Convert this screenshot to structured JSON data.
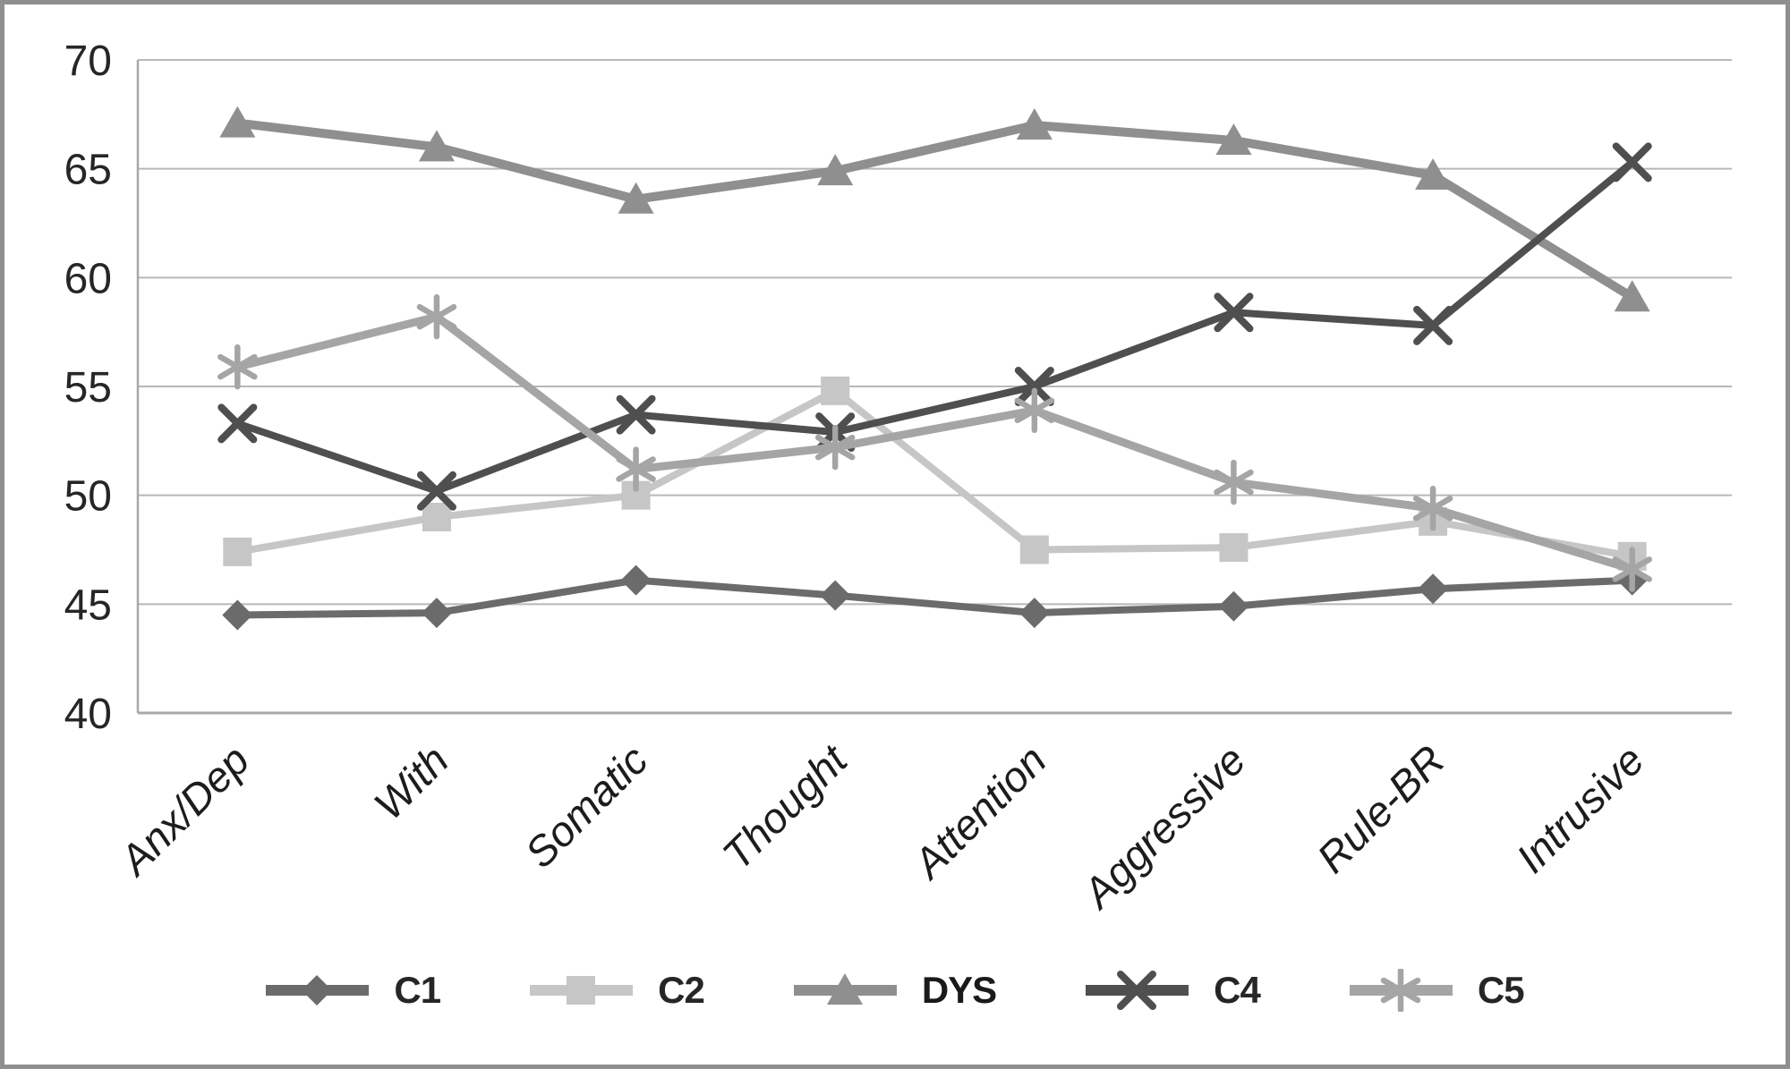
{
  "figure": {
    "background": "#ffffff",
    "border_color": "#8f8f8f"
  },
  "chart_data": {
    "type": "line",
    "title": "",
    "xlabel": "",
    "ylabel": "",
    "categories": [
      "Anx/Dep",
      "With",
      "Somatic",
      "Thought",
      "Attention",
      "Aggressive",
      "Rule-BR",
      "Intrusive"
    ],
    "series": [
      {
        "name": "C1",
        "marker": "diamond",
        "color": "#6b6b6b",
        "line_width": 8,
        "bold_label": false,
        "values": [
          44.5,
          44.6,
          46.1,
          45.4,
          44.6,
          44.9,
          45.7,
          46.1
        ]
      },
      {
        "name": "C2",
        "marker": "square",
        "color": "#c6c6c6",
        "line_width": 8,
        "bold_label": false,
        "values": [
          47.4,
          49.0,
          50.0,
          54.8,
          47.5,
          47.6,
          48.8,
          47.2
        ]
      },
      {
        "name": "DYS",
        "marker": "triangle",
        "color": "#8f8f8f",
        "line_width": 10,
        "bold_label": true,
        "values": [
          67.1,
          66.0,
          63.6,
          64.9,
          67.0,
          66.3,
          64.7,
          59.1
        ]
      },
      {
        "name": "C4",
        "marker": "x",
        "color": "#4f4f4f",
        "line_width": 8,
        "bold_label": false,
        "values": [
          53.3,
          50.2,
          53.7,
          52.9,
          55.0,
          58.4,
          57.8,
          65.3
        ]
      },
      {
        "name": "C5",
        "marker": "asterisk",
        "color": "#a5a5a5",
        "line_width": 9,
        "bold_label": false,
        "values": [
          55.9,
          58.2,
          51.2,
          52.2,
          53.9,
          50.6,
          49.4,
          46.6
        ]
      }
    ],
    "ylim": [
      40,
      70
    ],
    "yticks": [
      40,
      45,
      50,
      55,
      60,
      65,
      70
    ],
    "grid": "horizontal-only",
    "legend_position": "bottom-center",
    "x_tick_style": "italic, rotated 45deg",
    "grid_color": "#b8b8b8",
    "axis_color": "#a8a8a8",
    "tick_label_color": "#262626",
    "x_label_color": "#1c1c1c"
  }
}
